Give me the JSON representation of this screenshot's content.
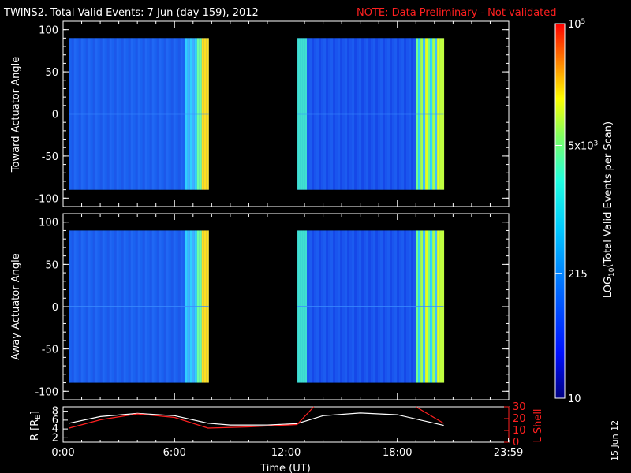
{
  "header": {
    "title": "TWINS2. Total Valid Events:  7 Jun (day 159), 2012",
    "note": "NOTE: Data Preliminary - Not validated"
  },
  "colors": {
    "note": "#ff2020",
    "lshell_line": "#ff2020",
    "r_line": "#ffffff",
    "axis": "#ffffff",
    "background": "#000000"
  },
  "chart_data": [
    {
      "type": "heatmap",
      "panel": "top",
      "ylabel": "Toward Actuator Angle",
      "ylim": [
        -110,
        110
      ],
      "yticks": [
        "100",
        "50",
        "0",
        "-50",
        "-100"
      ],
      "ytick_values": [
        100,
        50,
        0,
        -50,
        -100
      ],
      "xlim": [
        0,
        24
      ],
      "data_blocks": [
        {
          "start": 0.33,
          "end": 7.85,
          "angle_range": [
            -90,
            90
          ]
        },
        {
          "start": 12.62,
          "end": 20.5,
          "angle_range": [
            -90,
            90
          ]
        }
      ]
    },
    {
      "type": "heatmap",
      "panel": "middle",
      "ylabel": "Away Actuator Angle",
      "ylim": [
        -110,
        110
      ],
      "yticks": [
        "100",
        "50",
        "0",
        "-50",
        "-100"
      ],
      "ytick_values": [
        100,
        50,
        0,
        -50,
        -100
      ],
      "xlim": [
        0,
        24
      ],
      "data_blocks": [
        {
          "start": 0.33,
          "end": 7.85,
          "angle_range": [
            -90,
            90
          ]
        },
        {
          "start": 12.62,
          "end": 20.5,
          "angle_range": [
            -90,
            90
          ]
        }
      ]
    },
    {
      "type": "line",
      "panel": "bottom",
      "ylabel_left": "R [R",
      "ylabel_left_sub": "E",
      "ylabel_left_close": "]",
      "ylabel_right": "L Shell",
      "left_yticks": [
        "8",
        "6",
        "4",
        "2"
      ],
      "left_ytick_values": [
        8,
        6,
        4,
        2
      ],
      "left_ylim": [
        1,
        9
      ],
      "right_yticks": [
        "30",
        "20",
        "10",
        "0"
      ],
      "right_ytick_values": [
        30,
        20,
        10,
        0
      ],
      "right_ylim": [
        0,
        30
      ],
      "xlabel": "Time (UT)",
      "xticks": [
        "0:00",
        "6:00",
        "12:00",
        "18:00",
        "23:59"
      ],
      "xtick_values": [
        0,
        6,
        12,
        18,
        23.98
      ],
      "xlim": [
        0,
        24
      ],
      "series": [
        {
          "axis": "left",
          "x": [
            0.33,
            2,
            4,
            6,
            7.8,
            9,
            11,
            12.6,
            14,
            16,
            18,
            20.5
          ],
          "values": [
            5.3,
            6.8,
            7.5,
            7.0,
            5.3,
            4.9,
            4.9,
            5.2,
            7.0,
            7.6,
            7.2,
            4.8
          ]
        },
        {
          "axis": "right",
          "x": [
            0.33,
            2,
            4,
            6,
            7.8,
            10,
            12.6,
            13.2,
            13.5
          ],
          "values": [
            12,
            19,
            24,
            21,
            12,
            13,
            15,
            25,
            31
          ],
          "x2": [
            19.0,
            20.5
          ],
          "values2": [
            31,
            16
          ]
        }
      ]
    }
  ],
  "colorbar": {
    "label_main": "LOG",
    "label_sub": "10",
    "label_rest": "(Total Valid Events per Scan)",
    "ticks": [
      {
        "label": "10",
        "value": 10
      },
      {
        "label": "215",
        "value": 215
      },
      {
        "label": "5x10",
        "sup": "3",
        "value": 5000
      },
      {
        "label": "10",
        "sup": "5",
        "value": 100000
      }
    ],
    "range": [
      10,
      100000
    ]
  },
  "footer": {
    "date_stamp": "15 Jun 12"
  }
}
